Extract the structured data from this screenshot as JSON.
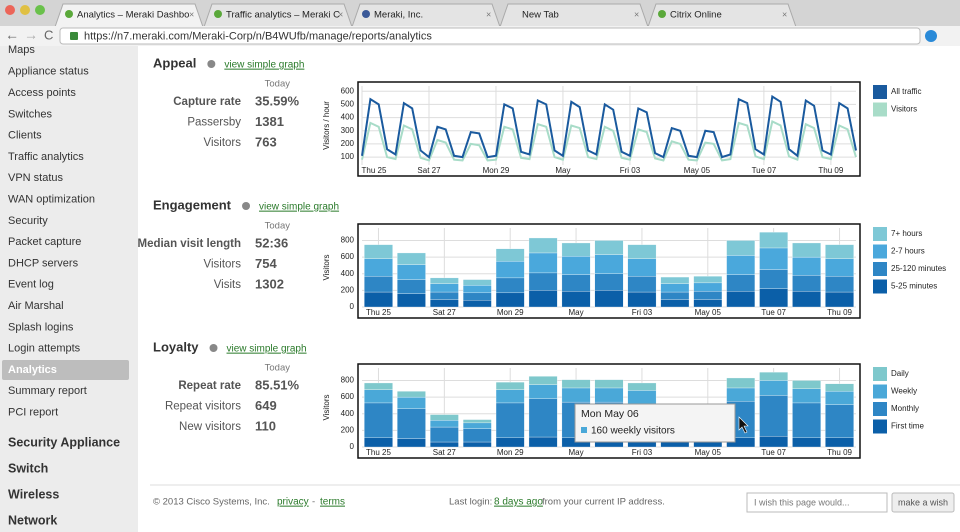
{
  "browser": {
    "tabs": [
      "Analytics – Meraki Dashbo",
      "Traffic analytics – Meraki C",
      "Meraki, Inc.",
      "New Tab",
      "Citrix Online"
    ],
    "url": "https://n7.meraki.com/Meraki-Corp/n/B4WUfb/manage/reports/analytics"
  },
  "sidebar": {
    "items": [
      "Maps",
      "Appliance status",
      "Access points",
      "Switches",
      "Clients",
      "Traffic analytics",
      "VPN status",
      "WAN optimization",
      "Security",
      "Packet capture",
      "DHCP servers",
      "Event log",
      "Air Marshal",
      "Splash logins",
      "Login attempts",
      "Analytics",
      "Summary report",
      "PCI report"
    ],
    "groups": [
      "Security Appliance",
      "Switch",
      "Wireless",
      "Network"
    ]
  },
  "sections": [
    {
      "title": "Appeal",
      "link": "view simple graph",
      "stats_header": "Today",
      "stats": [
        {
          "label": "Capture rate",
          "value": "35.59%"
        },
        {
          "label": "Passersby",
          "value": "1381"
        },
        {
          "label": "Visitors",
          "value": "763"
        }
      ],
      "chart": {
        "type": "line",
        "y_label": "Visitors / hour",
        "categories": [
          "Thu 25",
          null,
          null,
          null,
          null,
          null,
          null,
          null,
          "Sat 27",
          null,
          null,
          null,
          null,
          null,
          null,
          null,
          "Mon 29",
          null,
          null,
          null,
          null,
          null,
          null,
          null,
          "May",
          null,
          null,
          null,
          null,
          null,
          null,
          null,
          "Fri 03",
          null,
          null,
          null,
          null,
          null,
          null,
          null,
          "May 05",
          null,
          null,
          null,
          null,
          null,
          null,
          null,
          "Tue 07",
          null,
          null,
          null,
          null,
          null,
          null,
          null,
          "Thu 09",
          null,
          null,
          null
        ],
        "series": [
          {
            "name": "All traffic",
            "color": "#1a5a9e",
            "values": [
              110,
              540,
              500,
              160,
              120,
              510,
              470,
              150,
              100,
              330,
              310,
              110,
              100,
              290,
              280,
              100,
              110,
              500,
              470,
              140,
              120,
              530,
              500,
              150,
              110,
              520,
              480,
              150,
              120,
              500,
              460,
              140,
              110,
              470,
              440,
              130,
              100,
              320,
              300,
              110,
              100,
              300,
              290,
              100,
              120,
              540,
              510,
              160,
              120,
              560,
              520,
              160,
              110,
              530,
              490,
              150,
              120,
              510,
              470,
              150
            ]
          },
          {
            "name": "Visitors",
            "color": "#a8dcc8",
            "values": [
              80,
              360,
              330,
              100,
              85,
              340,
              310,
              95,
              75,
              230,
              210,
              80,
              75,
              200,
              190,
              75,
              80,
              330,
              310,
              95,
              85,
              350,
              330,
              100,
              80,
              340,
              320,
              100,
              85,
              330,
              300,
              95,
              80,
              310,
              290,
              90,
              75,
              220,
              200,
              80,
              75,
              210,
              200,
              75,
              85,
              360,
              340,
              105,
              85,
              370,
              340,
              105,
              80,
              350,
              320,
              100,
              85,
              340,
              310,
              100
            ]
          }
        ],
        "ylim": [
          40,
          640
        ],
        "yticks": [
          100,
          200,
          300,
          400,
          500,
          600
        ],
        "grid": true,
        "legend": "right"
      }
    },
    {
      "title": "Engagement",
      "link": "view simple graph",
      "stats_header": "Today",
      "stats": [
        {
          "label": "Median visit length",
          "value": "52:36"
        },
        {
          "label": "Visitors",
          "value": "754"
        },
        {
          "label": "Visits",
          "value": "1302"
        }
      ],
      "chart": {
        "type": "bar",
        "stacked": true,
        "y_label": "Visitors",
        "categories": [
          "Thu 25",
          null,
          "Sat 27",
          null,
          "Mon 29",
          null,
          "May",
          null,
          "Fri 03",
          null,
          "May 05",
          null,
          "Tue 07",
          null,
          "Thu 09"
        ],
        "series": [
          {
            "name": "7+ hours",
            "color": "#7ec8d6",
            "values": [
              170,
              140,
              70,
              70,
              150,
              180,
              160,
              170,
              170,
              80,
              80,
              180,
              190,
              170,
              170
            ]
          },
          {
            "name": "2-7 hours",
            "color": "#4aa8dc",
            "values": [
              210,
              180,
              100,
              90,
              200,
              240,
              220,
              230,
              210,
              100,
              100,
              230,
              260,
              220,
              210
            ]
          },
          {
            "name": "25-120 minutes",
            "color": "#2e86c5",
            "values": [
              190,
              170,
              90,
              90,
              180,
              210,
              200,
              200,
              190,
              90,
              100,
              200,
              230,
              190,
              190
            ]
          },
          {
            "name": "5-25 minutes",
            "color": "#0b5fa8",
            "values": [
              180,
              160,
              90,
              80,
              170,
              200,
              190,
              200,
              180,
              90,
              90,
              190,
              220,
              190,
              180
            ]
          }
        ],
        "ylim": [
          0,
          950
        ],
        "yticks": [
          0,
          200,
          400,
          600,
          800
        ],
        "grid": true,
        "legend": "right"
      }
    },
    {
      "title": "Loyalty",
      "link": "view simple graph",
      "stats_header": "Today",
      "stats": [
        {
          "label": "Repeat rate",
          "value": "85.51%"
        },
        {
          "label": "Repeat visitors",
          "value": "649"
        },
        {
          "label": "New visitors",
          "value": "110"
        }
      ],
      "chart": {
        "type": "bar",
        "stacked": true,
        "y_label": "Visitors",
        "categories": [
          "Thu 25",
          null,
          "Sat 27",
          null,
          "Mon 29",
          null,
          "May",
          null,
          "Fri 03",
          null,
          "May 05",
          null,
          "Tue 07",
          null,
          "Thu 09"
        ],
        "series": [
          {
            "name": "Daily",
            "color": "#7ec8cc",
            "values": [
              80,
              70,
              70,
              40,
              90,
              100,
              100,
              100,
              90,
              60,
              60,
              120,
              100,
              100,
              90
            ]
          },
          {
            "name": "Weekly",
            "color": "#4aa8d8",
            "values": [
              160,
              140,
              80,
              70,
              160,
              170,
              170,
              170,
              160,
              80,
              80,
              160,
              180,
              170,
              160
            ]
          },
          {
            "name": "Monthly",
            "color": "#2e86c5",
            "values": [
              420,
              360,
              180,
              160,
              420,
              460,
              430,
              430,
              410,
              180,
              180,
              440,
              490,
              420,
              400
            ]
          },
          {
            "name": "First time",
            "color": "#0b5fa8",
            "values": [
              110,
              100,
              60,
              60,
              110,
              120,
              110,
              110,
              110,
              60,
              60,
              110,
              130,
              110,
              110
            ]
          }
        ],
        "ylim": [
          0,
          950
        ],
        "yticks": [
          0,
          200,
          400,
          600,
          800
        ],
        "grid": true,
        "legend": "right"
      }
    }
  ],
  "tooltip": {
    "title": "Mon May 06",
    "text": "160 weekly visitors"
  },
  "footer": {
    "copyright": "© 2013 Cisco Systems, Inc.",
    "privacy": "privacy",
    "separator": "-",
    "terms": "terms",
    "last_login": "Last login:",
    "last_login_link": "8 days ago",
    "last_login_rest": "from your current IP address.",
    "wish_placeholder": "I wish this page would...",
    "wish_button": "make a wish"
  }
}
